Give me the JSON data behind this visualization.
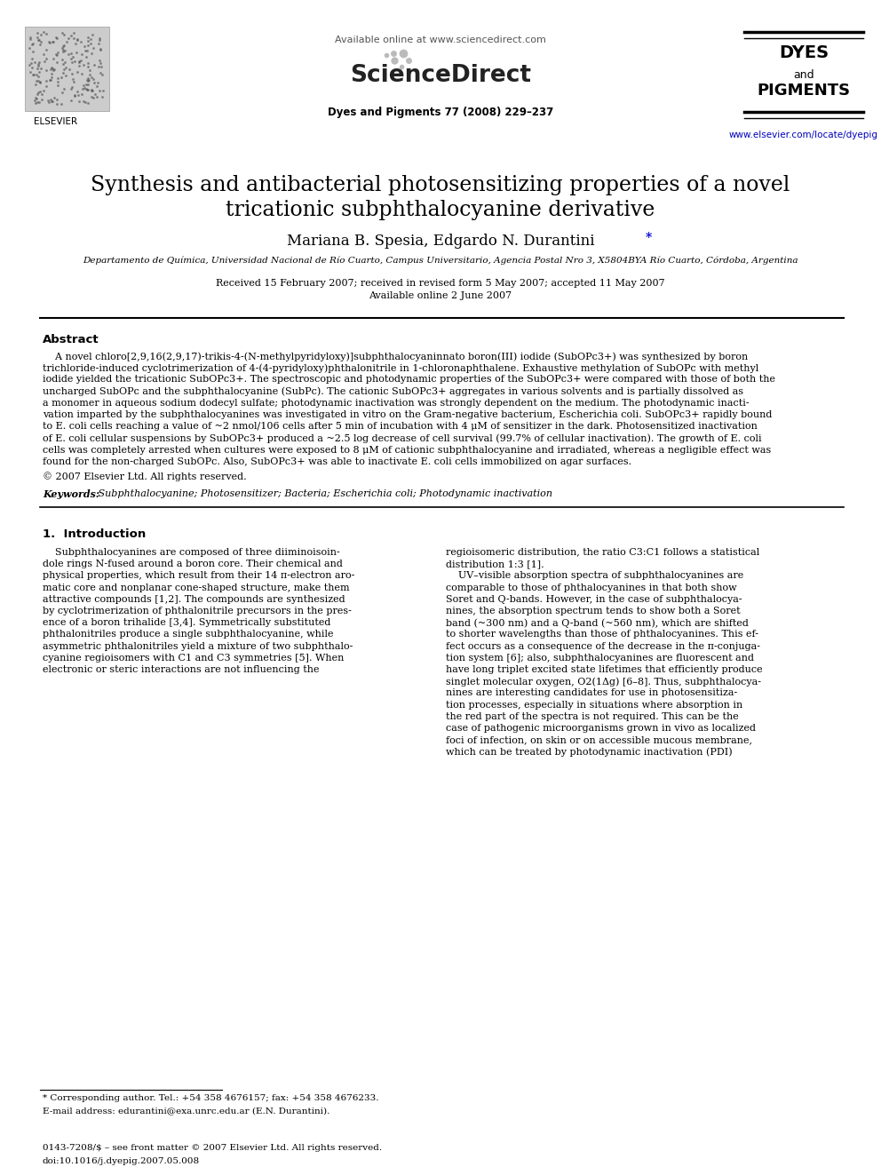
{
  "background_color": "#ffffff",
  "elsevier_text": "ELSEVIER",
  "available_online": "Available online at www.sciencedirect.com",
  "sciencedirect": "ScienceDirect",
  "journal_info": "Dyes and Pigments 77 (2008) 229–237",
  "journal_name_line1": "DYES",
  "journal_name_line2": "and",
  "journal_name_line3": "PIGMENTS",
  "journal_url": "www.elsevier.com/locate/dyepig",
  "title_line1": "Synthesis and antibacterial photosensitizing properties of a novel",
  "title_line2": "tricationic subphthalocyanine derivative",
  "author_main": "Mariana B. Spesia, Edgardo N. Durantini",
  "author_star": "*",
  "affiliation": "Departamento de Química, Universidad Nacional de Río Cuarto, Campus Universitario, Agencia Postal Nro 3, X5804BYA Río Cuarto, Córdoba, Argentina",
  "received": "Received 15 February 2007; received in revised form 5 May 2007; accepted 11 May 2007",
  "available": "Available online 2 June 2007",
  "abstract_heading": "Abstract",
  "abstract_lines": [
    "    A novel chloro[2,9,16(2,9,17)-trikis-4-(N-methylpyridyloxy)]subphthalocyaninnato boron(III) iodide (SubOPc3+) was synthesized by boron",
    "trichloride-induced cyclotrimerization of 4-(4-pyridyloxy)phthalonitrile in 1-chloronaphthalene. Exhaustive methylation of SubOPc with methyl",
    "iodide yielded the tricationic SubOPc3+. The spectroscopic and photodynamic properties of the SubOPc3+ were compared with those of both the",
    "uncharged SubOPc and the subphthalocyanine (SubPc). The cationic SubOPc3+ aggregates in various solvents and is partially dissolved as",
    "a monomer in aqueous sodium dodecyl sulfate; photodynamic inactivation was strongly dependent on the medium. The photodynamic inacti-",
    "vation imparted by the subphthalocyanines was investigated in vitro on the Gram-negative bacterium, Escherichia coli. SubOPc3+ rapidly bound",
    "to E. coli cells reaching a value of ~2 nmol/106 cells after 5 min of incubation with 4 μM of sensitizer in the dark. Photosensitized inactivation",
    "of E. coli cellular suspensions by SubOPc3+ produced a ~2.5 log decrease of cell survival (99.7% of cellular inactivation). The growth of E. coli",
    "cells was completely arrested when cultures were exposed to 8 μM of cationic subphthalocyanine and irradiated, whereas a negligible effect was",
    "found for the non-charged SubOPc. Also, SubOPc3+ was able to inactivate E. coli cells immobilized on agar surfaces."
  ],
  "copyright": "© 2007 Elsevier Ltd. All rights reserved.",
  "keywords_label": "Keywords:",
  "keywords_text": " Subphthalocyanine; Photosensitizer; Bacteria; Escherichia coli; Photodynamic inactivation",
  "section1_heading": "1.  Introduction",
  "intro_col1_lines": [
    "    Subphthalocyanines are composed of three diiminoisoin-",
    "dole rings N-fused around a boron core. Their chemical and",
    "physical properties, which result from their 14 π-electron aro-",
    "matic core and nonplanar cone-shaped structure, make them",
    "attractive compounds [1,2]. The compounds are synthesized",
    "by cyclotrimerization of phthalonitrile precursors in the pres-",
    "ence of a boron trihalide [3,4]. Symmetrically substituted",
    "phthalonitriles produce a single subphthalocyanine, while",
    "asymmetric phthalonitriles yield a mixture of two subphthalo-",
    "cyanine regioisomers with C1 and C3 symmetries [5]. When",
    "electronic or steric interactions are not influencing the"
  ],
  "intro_col2_lines": [
    "regioisomeric distribution, the ratio C3:C1 follows a statistical",
    "distribution 1:3 [1].",
    "    UV–visible absorption spectra of subphthalocyanines are",
    "comparable to those of phthalocyanines in that both show",
    "Soret and Q-bands. However, in the case of subphthalocya-",
    "nines, the absorption spectrum tends to show both a Soret",
    "band (~300 nm) and a Q-band (~560 nm), which are shifted",
    "to shorter wavelengths than those of phthalocyanines. This ef-",
    "fect occurs as a consequence of the decrease in the π-conjuga-",
    "tion system [6]; also, subphthalocyanines are fluorescent and",
    "have long triplet excited state lifetimes that efficiently produce",
    "singlet molecular oxygen, O2(1Δg) [6–8]. Thus, subphthalocya-",
    "nines are interesting candidates for use in photosensitiza-",
    "tion processes, especially in situations where absorption in",
    "the red part of the spectra is not required. This can be the",
    "case of pathogenic microorganisms grown in vivo as localized",
    "foci of infection, on skin or on accessible mucous membrane,",
    "which can be treated by photodynamic inactivation (PDI)"
  ],
  "footnote1": "* Corresponding author. Tel.: +54 358 4676157; fax: +54 358 4676233.",
  "footnote2": "E-mail address: edurantini@exa.unrc.edu.ar (E.N. Durantini).",
  "footer1": "0143-7208/$ – see front matter © 2007 Elsevier Ltd. All rights reserved.",
  "footer2": "doi:10.1016/j.dyepig.2007.05.008"
}
